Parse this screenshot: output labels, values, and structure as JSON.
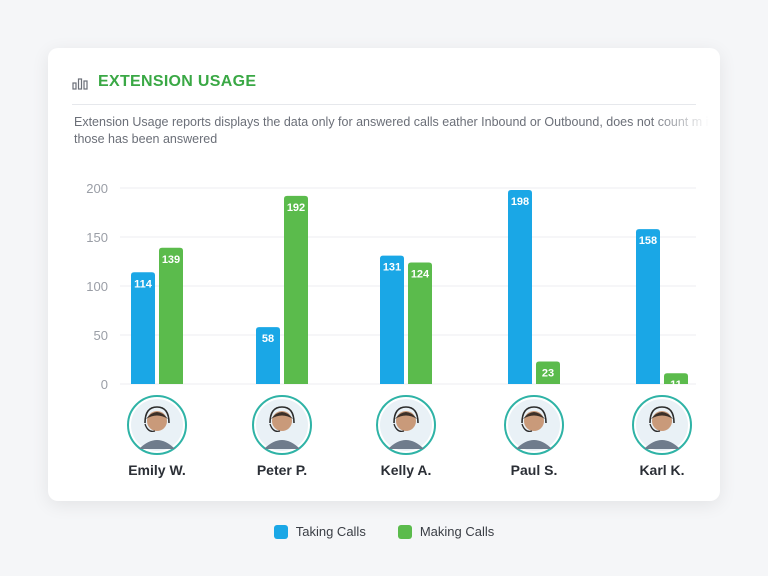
{
  "card": {
    "title": "EXTENSION USAGE",
    "description": "Extension Usage reports displays the data only for answered calls eather Inbound or Outbound, does not count m if those has been answered"
  },
  "colors": {
    "taking": "#1aa7e6",
    "making": "#5bbb4c",
    "title": "#3aa845"
  },
  "chart_data": {
    "type": "bar",
    "categories": [
      "Emily W.",
      "Peter P.",
      "Kelly A.",
      "Paul S.",
      "Karl K."
    ],
    "series": [
      {
        "name": "Taking Calls",
        "values": [
          114,
          58,
          131,
          198,
          158
        ]
      },
      {
        "name": "Making Calls",
        "values": [
          139,
          192,
          124,
          23,
          11
        ]
      }
    ],
    "yticks": [
      "0",
      "50",
      "100",
      "150",
      "200"
    ],
    "ylim": [
      0,
      200
    ],
    "grid": true,
    "legend": "bottom-center",
    "title": "",
    "xlabel": "",
    "ylabel": ""
  },
  "avatars": [
    "avatar-icon",
    "avatar-icon",
    "avatar-icon",
    "avatar-icon",
    "avatar-icon"
  ]
}
